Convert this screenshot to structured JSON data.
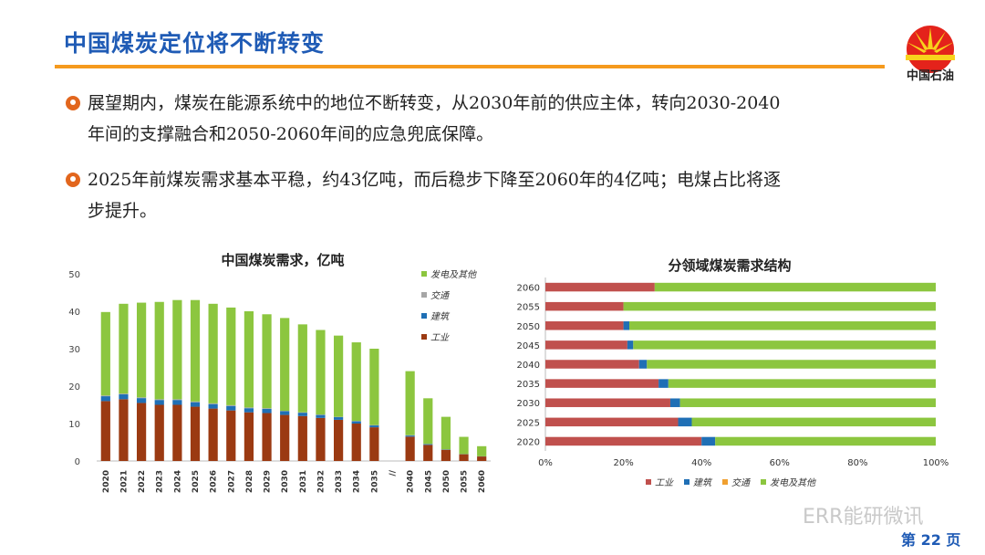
{
  "header": {
    "title": "中国煤炭定位将不断转变",
    "logo_text": "中国石油",
    "accent_color": "#f59a1e",
    "title_color": "#1f5bb5"
  },
  "bullets": [
    {
      "line1": "展望期内，煤炭在能源系统中的地位不断转变，从2030年前的供应主体，转向2030-2040",
      "line2": "年间的支撑融合和2050-2060年间的应急兜底保障。"
    },
    {
      "line1": "2025年前煤炭需求基本平稳，约43亿吨，而后稳步下降至2060年的4亿吨；电煤占比将逐",
      "line2": "步提升。"
    }
  ],
  "chart_data": [
    {
      "type": "bar",
      "stacked": true,
      "title": "中国煤炭需求，亿吨",
      "categories": [
        "2020",
        "2021",
        "2022",
        "2023",
        "2024",
        "2025",
        "2026",
        "2027",
        "2028",
        "2029",
        "2030",
        "2031",
        "2032",
        "2033",
        "2034",
        "2035",
        "//",
        "2040",
        "2045",
        "2050",
        "2055",
        "2060"
      ],
      "ylim": [
        0,
        50
      ],
      "yticks": [
        0,
        10,
        20,
        30,
        40,
        50
      ],
      "legend_position": "top-right",
      "series": [
        {
          "name": "工业",
          "color": "#9b3a12",
          "values": [
            16,
            16.5,
            15.5,
            15,
            15,
            14.5,
            14,
            13.5,
            13,
            12.8,
            12.3,
            12,
            11.5,
            11,
            10,
            9,
            null,
            6.5,
            4.3,
            3,
            1.8,
            1.2
          ]
        },
        {
          "name": "建筑",
          "color": "#1f6fb5",
          "values": [
            1.3,
            1.3,
            1.3,
            1.3,
            1.3,
            1.2,
            1.2,
            1.2,
            1.1,
            1.1,
            1.0,
            0.9,
            0.8,
            0.7,
            0.6,
            0.5,
            null,
            0.3,
            0.2,
            0.1,
            0.05,
            0.05
          ]
        },
        {
          "name": "交通",
          "color": "#a6a6a6",
          "values": [
            0.2,
            0.2,
            0.2,
            0.2,
            0.2,
            0.2,
            0.2,
            0.2,
            0.2,
            0.2,
            0.1,
            0.1,
            0.1,
            0.1,
            0.1,
            0.1,
            null,
            0.1,
            0.05,
            0,
            0,
            0
          ]
        },
        {
          "name": "发电及其他",
          "color": "#8cc63f",
          "values": [
            22.3,
            24.0,
            25.3,
            26.0,
            26.5,
            27.1,
            26.6,
            26.1,
            25.7,
            25.1,
            24.8,
            23.5,
            22.6,
            21.7,
            21.0,
            20.4,
            null,
            17.1,
            12.2,
            8.7,
            4.6,
            2.7
          ]
        }
      ]
    },
    {
      "type": "bar",
      "orientation": "horizontal",
      "stacked_percent": true,
      "title": "分领域煤炭需求结构",
      "categories": [
        "2060",
        "2055",
        "2050",
        "2045",
        "2040",
        "2035",
        "2030",
        "2025",
        "2020"
      ],
      "xlim": [
        0,
        100
      ],
      "xticks": [
        "0%",
        "20%",
        "40%",
        "60%",
        "80%",
        "100%"
      ],
      "legend_position": "bottom",
      "series": [
        {
          "name": "工业",
          "color": "#c0504d",
          "values": [
            28,
            20,
            20,
            21,
            24,
            29,
            32,
            34,
            40
          ]
        },
        {
          "name": "建筑",
          "color": "#1f6fb5",
          "values": [
            0,
            0,
            1.5,
            1.5,
            2,
            2.5,
            2.5,
            3.5,
            3.5
          ]
        },
        {
          "name": "交通",
          "color": "#f0a030",
          "values": [
            0,
            0,
            0,
            0,
            0,
            0,
            0,
            0,
            0
          ]
        },
        {
          "name": "发电及其他",
          "color": "#8cc63f",
          "values": [
            72,
            80,
            78.5,
            77.5,
            74,
            68.5,
            65.5,
            62.5,
            56.5
          ]
        }
      ]
    }
  ],
  "footer": {
    "watermark": "ERR能研微讯",
    "page_label": "第 22 页"
  }
}
